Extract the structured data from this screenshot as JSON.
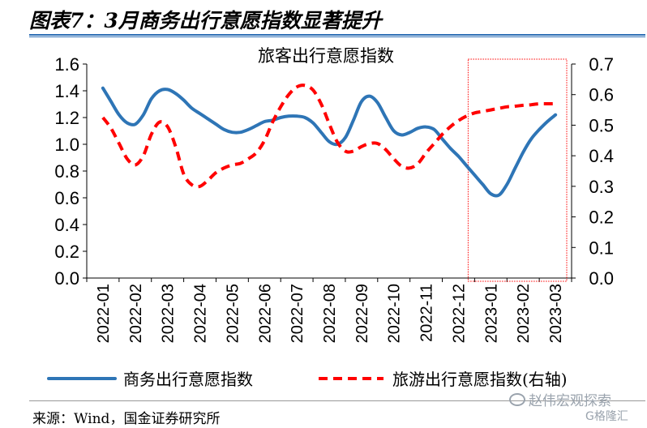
{
  "figure": {
    "title": "图表7：3月商务出行意愿指数显著提升",
    "source": "来源：Wind，国金证券研究所",
    "watermark": "赵伟宏观探索",
    "watermark2": "G格隆汇"
  },
  "chart_data": {
    "type": "line",
    "title": "旅客出行意愿指数",
    "categories": [
      "2022-01",
      "2022-02",
      "2022-03",
      "2022-04",
      "2022-05",
      "2022-06",
      "2022-07",
      "2022-08",
      "2022-09",
      "2022-10",
      "2022-11",
      "2022-12",
      "2023-01",
      "2023-02",
      "2023-03"
    ],
    "x": [
      0,
      0.25,
      0.5,
      0.75,
      1,
      1.25,
      1.5,
      1.75,
      2,
      2.25,
      2.5,
      2.75,
      3,
      3.25,
      3.5,
      3.75,
      4,
      4.25,
      4.5,
      4.75,
      5,
      5.25,
      5.5,
      5.75,
      6,
      6.25,
      6.5,
      6.75,
      7,
      7.25,
      7.5,
      7.75,
      8,
      8.25,
      8.5,
      8.75,
      9,
      9.25,
      9.5,
      9.75,
      10,
      10.25,
      10.5,
      10.75,
      11,
      11.25,
      11.5,
      11.75,
      12,
      12.25,
      12.5,
      12.75,
      13,
      13.25,
      13.5,
      13.75,
      14
    ],
    "series": [
      {
        "name": "商务出行意愿指数",
        "axis": "left",
        "color": "#2e75b6",
        "style": "solid",
        "values": [
          1.42,
          1.32,
          1.22,
          1.16,
          1.15,
          1.22,
          1.34,
          1.4,
          1.41,
          1.38,
          1.33,
          1.27,
          1.23,
          1.19,
          1.15,
          1.11,
          1.09,
          1.09,
          1.11,
          1.14,
          1.17,
          1.18,
          1.2,
          1.21,
          1.21,
          1.2,
          1.16,
          1.09,
          1.02,
          1.0,
          1.05,
          1.18,
          1.32,
          1.36,
          1.31,
          1.2,
          1.1,
          1.07,
          1.09,
          1.12,
          1.13,
          1.11,
          1.04,
          0.97,
          0.91,
          0.84,
          0.77,
          0.7,
          0.63,
          0.62,
          0.7,
          0.82,
          0.94,
          1.04,
          1.11,
          1.17,
          1.22
        ]
      },
      {
        "name": "旅游出行意愿指数(右轴)",
        "axis": "right",
        "color": "#ff0000",
        "style": "dashed",
        "values": [
          0.525,
          0.49,
          0.44,
          0.39,
          0.37,
          0.4,
          0.47,
          0.51,
          0.495,
          0.43,
          0.34,
          0.305,
          0.3,
          0.32,
          0.345,
          0.36,
          0.37,
          0.375,
          0.39,
          0.41,
          0.45,
          0.51,
          0.56,
          0.6,
          0.625,
          0.63,
          0.615,
          0.57,
          0.505,
          0.445,
          0.415,
          0.415,
          0.43,
          0.44,
          0.44,
          0.42,
          0.39,
          0.365,
          0.36,
          0.375,
          0.41,
          0.44,
          0.47,
          0.495,
          0.515,
          0.53,
          0.54,
          0.545,
          0.55,
          0.555,
          0.56,
          0.562,
          0.565,
          0.567,
          0.57,
          0.57,
          0.57
        ]
      }
    ],
    "y_left": {
      "min": 0,
      "max": 1.6,
      "ticks": [
        "0.0",
        "0.2",
        "0.4",
        "0.6",
        "0.8",
        "1.0",
        "1.2",
        "1.4",
        "1.6"
      ]
    },
    "y_right": {
      "min": 0,
      "max": 0.7,
      "ticks": [
        "0.0",
        "0.1",
        "0.2",
        "0.3",
        "0.4",
        "0.5",
        "0.6",
        "0.7"
      ]
    },
    "highlight": {
      "from": "2023-01",
      "to": "2023-03",
      "color": "#ff0000",
      "style": "dotted"
    },
    "grid": false,
    "legend": "bottom"
  }
}
